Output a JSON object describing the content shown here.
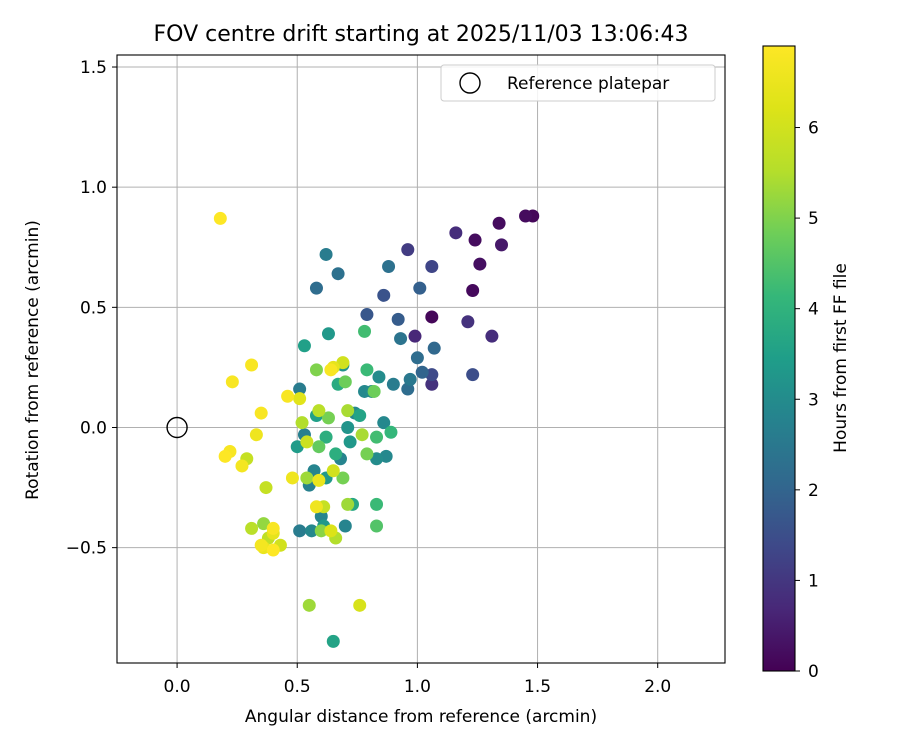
{
  "chart_data": {
    "type": "scatter",
    "title": "FOV centre drift starting at 2025/11/03 13:06:43",
    "xlabel": "Angular distance from reference (arcmin)",
    "ylabel": "Rotation from reference (arcmin)",
    "xlim": [
      -0.25,
      2.28
    ],
    "ylim": [
      -0.98,
      1.55
    ],
    "grid": true,
    "x_ticks": [
      0.0,
      0.5,
      1.0,
      1.5,
      2.0
    ],
    "x_tick_labels": [
      "0.0",
      "0.5",
      "1.0",
      "1.5",
      "2.0"
    ],
    "y_ticks": [
      -0.5,
      0.0,
      0.5,
      1.0,
      1.5
    ],
    "y_tick_labels": [
      "−0.5",
      "0.0",
      "0.5",
      "1.0",
      "1.5"
    ],
    "legend": {
      "label": "Reference platepar",
      "position": "top-right"
    },
    "reference_point": {
      "x": 0.0,
      "y": 0.0
    },
    "colorbar": {
      "label": "Hours from first FF file",
      "cmap": "viridis",
      "range": [
        0,
        6.9
      ],
      "ticks": [
        0,
        1,
        2,
        3,
        4,
        5,
        6
      ],
      "tick_labels": [
        "0",
        "1",
        "2",
        "3",
        "4",
        "5",
        "6"
      ]
    },
    "points": [
      {
        "x": 1.48,
        "y": 0.88,
        "h": 0.1
      },
      {
        "x": 1.45,
        "y": 0.88,
        "h": 0.2
      },
      {
        "x": 1.34,
        "y": 0.85,
        "h": 0.2
      },
      {
        "x": 1.26,
        "y": 0.68,
        "h": 0.25
      },
      {
        "x": 1.24,
        "y": 0.78,
        "h": 0.2
      },
      {
        "x": 1.23,
        "y": 0.57,
        "h": 0.15
      },
      {
        "x": 1.06,
        "y": 0.46,
        "h": 0.1
      },
      {
        "x": 1.35,
        "y": 0.76,
        "h": 0.4
      },
      {
        "x": 1.31,
        "y": 0.38,
        "h": 0.8
      },
      {
        "x": 1.16,
        "y": 0.81,
        "h": 0.8
      },
      {
        "x": 1.21,
        "y": 0.44,
        "h": 0.9
      },
      {
        "x": 1.06,
        "y": 0.18,
        "h": 0.9
      },
      {
        "x": 0.99,
        "y": 0.38,
        "h": 0.7
      },
      {
        "x": 0.96,
        "y": 0.74,
        "h": 1.1
      },
      {
        "x": 1.06,
        "y": 0.67,
        "h": 1.3
      },
      {
        "x": 1.23,
        "y": 0.22,
        "h": 1.5
      },
      {
        "x": 0.79,
        "y": 0.47,
        "h": 1.7
      },
      {
        "x": 0.86,
        "y": 0.55,
        "h": 1.6
      },
      {
        "x": 0.92,
        "y": 0.45,
        "h": 1.8
      },
      {
        "x": 1.01,
        "y": 0.58,
        "h": 1.9
      },
      {
        "x": 1.06,
        "y": 0.22,
        "h": 1.4
      },
      {
        "x": 1.02,
        "y": 0.23,
        "h": 2.0
      },
      {
        "x": 0.96,
        "y": 0.16,
        "h": 2.2
      },
      {
        "x": 1.0,
        "y": 0.29,
        "h": 2.2
      },
      {
        "x": 1.07,
        "y": 0.33,
        "h": 2.1
      },
      {
        "x": 0.58,
        "y": 0.58,
        "h": 2.2
      },
      {
        "x": 0.67,
        "y": 0.64,
        "h": 2.3
      },
      {
        "x": 0.88,
        "y": 0.67,
        "h": 2.3
      },
      {
        "x": 0.93,
        "y": 0.37,
        "h": 2.4
      },
      {
        "x": 0.97,
        "y": 0.2,
        "h": 2.5
      },
      {
        "x": 0.9,
        "y": 0.18,
        "h": 2.6
      },
      {
        "x": 0.62,
        "y": 0.72,
        "h": 2.6
      },
      {
        "x": 0.51,
        "y": 0.16,
        "h": 2.6
      },
      {
        "x": 0.53,
        "y": -0.03,
        "h": 2.7
      },
      {
        "x": 0.51,
        "y": -0.43,
        "h": 2.6
      },
      {
        "x": 0.55,
        "y": -0.24,
        "h": 2.7
      },
      {
        "x": 0.57,
        "y": -0.18,
        "h": 2.8
      },
      {
        "x": 0.56,
        "y": -0.43,
        "h": 2.9
      },
      {
        "x": 0.6,
        "y": -0.37,
        "h": 2.8
      },
      {
        "x": 0.7,
        "y": -0.41,
        "h": 2.8
      },
      {
        "x": 0.68,
        "y": -0.13,
        "h": 2.8
      },
      {
        "x": 0.74,
        "y": 0.06,
        "h": 2.9
      },
      {
        "x": 0.78,
        "y": 0.15,
        "h": 2.9
      },
      {
        "x": 0.81,
        "y": 0.15,
        "h": 3.0
      },
      {
        "x": 0.84,
        "y": 0.21,
        "h": 3.0
      },
      {
        "x": 0.86,
        "y": 0.02,
        "h": 2.9
      },
      {
        "x": 0.87,
        "y": -0.12,
        "h": 2.9
      },
      {
        "x": 0.83,
        "y": -0.13,
        "h": 3.0
      },
      {
        "x": 0.63,
        "y": 0.39,
        "h": 3.3
      },
      {
        "x": 0.53,
        "y": 0.34,
        "h": 3.5
      },
      {
        "x": 0.69,
        "y": 0.26,
        "h": 3.2
      },
      {
        "x": 0.71,
        "y": 0.0,
        "h": 3.2
      },
      {
        "x": 0.72,
        "y": -0.06,
        "h": 3.3
      },
      {
        "x": 0.62,
        "y": -0.21,
        "h": 3.3
      },
      {
        "x": 0.5,
        "y": -0.08,
        "h": 3.4
      },
      {
        "x": 0.58,
        "y": 0.05,
        "h": 3.5
      },
      {
        "x": 0.65,
        "y": -0.89,
        "h": 3.6
      },
      {
        "x": 0.61,
        "y": -0.41,
        "h": 3.3
      },
      {
        "x": 0.73,
        "y": -0.32,
        "h": 3.7
      },
      {
        "x": 0.76,
        "y": 0.05,
        "h": 3.6
      },
      {
        "x": 0.67,
        "y": 0.18,
        "h": 3.8
      },
      {
        "x": 0.62,
        "y": -0.04,
        "h": 3.9
      },
      {
        "x": 0.66,
        "y": -0.11,
        "h": 3.9
      },
      {
        "x": 0.78,
        "y": 0.4,
        "h": 4.3
      },
      {
        "x": 0.79,
        "y": 0.24,
        "h": 4.2
      },
      {
        "x": 0.83,
        "y": -0.04,
        "h": 4.3
      },
      {
        "x": 0.89,
        "y": -0.02,
        "h": 4.1
      },
      {
        "x": 0.83,
        "y": -0.32,
        "h": 4.2
      },
      {
        "x": 0.83,
        "y": -0.41,
        "h": 4.5
      },
      {
        "x": 0.82,
        "y": 0.15,
        "h": 4.8
      },
      {
        "x": 0.7,
        "y": 0.19,
        "h": 4.8
      },
      {
        "x": 0.79,
        "y": -0.11,
        "h": 4.9
      },
      {
        "x": 0.69,
        "y": -0.21,
        "h": 4.9
      },
      {
        "x": 0.58,
        "y": 0.24,
        "h": 5.0
      },
      {
        "x": 0.59,
        "y": -0.08,
        "h": 4.7
      },
      {
        "x": 0.63,
        "y": 0.04,
        "h": 4.9
      },
      {
        "x": 0.55,
        "y": -0.74,
        "h": 5.3
      },
      {
        "x": 0.6,
        "y": -0.43,
        "h": 5.1
      },
      {
        "x": 0.54,
        "y": -0.21,
        "h": 5.3
      },
      {
        "x": 0.71,
        "y": 0.07,
        "h": 5.4
      },
      {
        "x": 0.77,
        "y": -0.03,
        "h": 5.4
      },
      {
        "x": 0.71,
        "y": -0.32,
        "h": 5.3
      },
      {
        "x": 0.66,
        "y": -0.46,
        "h": 5.5
      },
      {
        "x": 0.52,
        "y": 0.02,
        "h": 5.5
      },
      {
        "x": 0.59,
        "y": 0.07,
        "h": 5.6
      },
      {
        "x": 0.61,
        "y": -0.33,
        "h": 5.8
      },
      {
        "x": 0.65,
        "y": -0.18,
        "h": 6.0
      },
      {
        "x": 0.54,
        "y": -0.06,
        "h": 5.9
      },
      {
        "x": 0.69,
        "y": 0.27,
        "h": 6.0
      },
      {
        "x": 0.76,
        "y": -0.74,
        "h": 6.1
      },
      {
        "x": 0.64,
        "y": -0.43,
        "h": 6.2
      },
      {
        "x": 0.51,
        "y": 0.12,
        "h": 6.3
      },
      {
        "x": 0.65,
        "y": 0.25,
        "h": 6.4
      },
      {
        "x": 0.59,
        "y": -0.22,
        "h": 6.5
      },
      {
        "x": 0.58,
        "y": -0.33,
        "h": 6.6
      },
      {
        "x": 0.48,
        "y": -0.21,
        "h": 6.6
      },
      {
        "x": 0.64,
        "y": 0.24,
        "h": 6.8
      },
      {
        "x": 0.46,
        "y": 0.13,
        "h": 6.8
      },
      {
        "x": 0.37,
        "y": -0.25,
        "h": 5.8
      },
      {
        "x": 0.31,
        "y": -0.42,
        "h": 5.6
      },
      {
        "x": 0.29,
        "y": -0.13,
        "h": 5.8
      },
      {
        "x": 0.36,
        "y": -0.4,
        "h": 5.2
      },
      {
        "x": 0.38,
        "y": -0.46,
        "h": 5.7
      },
      {
        "x": 0.43,
        "y": -0.49,
        "h": 6.0
      },
      {
        "x": 0.4,
        "y": -0.44,
        "h": 6.4
      },
      {
        "x": 0.36,
        "y": -0.5,
        "h": 6.5
      },
      {
        "x": 0.4,
        "y": -0.42,
        "h": 6.8
      },
      {
        "x": 0.4,
        "y": -0.51,
        "h": 6.9
      },
      {
        "x": 0.35,
        "y": -0.49,
        "h": 6.7
      },
      {
        "x": 0.33,
        "y": -0.03,
        "h": 6.6
      },
      {
        "x": 0.27,
        "y": -0.16,
        "h": 6.7
      },
      {
        "x": 0.35,
        "y": 0.06,
        "h": 6.8
      },
      {
        "x": 0.31,
        "y": 0.26,
        "h": 6.8
      },
      {
        "x": 0.23,
        "y": 0.19,
        "h": 6.8
      },
      {
        "x": 0.22,
        "y": -0.1,
        "h": 6.8
      },
      {
        "x": 0.2,
        "y": -0.12,
        "h": 6.9
      },
      {
        "x": 0.18,
        "y": 0.87,
        "h": 6.9
      }
    ]
  }
}
